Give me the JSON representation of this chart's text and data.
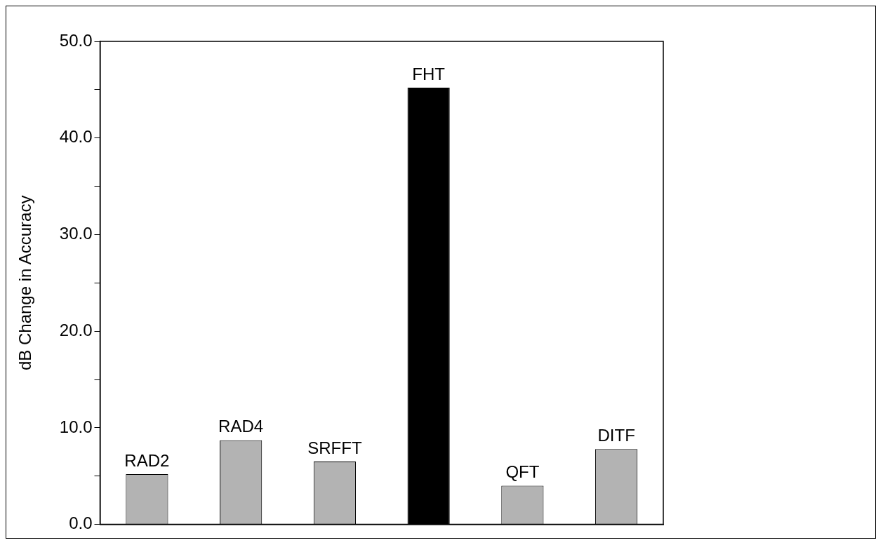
{
  "chart_data": {
    "type": "bar",
    "ylabel": "dB Change in Accuracy",
    "categories": [
      "RAD2",
      "RAD4",
      "SRFFT",
      "FHT",
      "QFT",
      "DITF"
    ],
    "values": [
      5.2,
      8.7,
      6.5,
      45.2,
      4.0,
      7.8
    ],
    "colors": [
      "#b3b3b3",
      "#b3b3b3",
      "#b3b3b3",
      "#000000",
      "#b3b3b3",
      "#b3b3b3"
    ],
    "ylim": [
      0,
      50
    ],
    "yticks": [
      {
        "value": 0,
        "label": "0.0"
      },
      {
        "value": 5,
        "label": null
      },
      {
        "value": 10,
        "label": "10.0"
      },
      {
        "value": 15,
        "label": null
      },
      {
        "value": 20,
        "label": "20.0"
      },
      {
        "value": 25,
        "label": null
      },
      {
        "value": 30,
        "label": "30.0"
      },
      {
        "value": 35,
        "label": null
      },
      {
        "value": 40,
        "label": "40.0"
      },
      {
        "value": 45,
        "label": null
      },
      {
        "value": 50,
        "label": "50.0"
      }
    ],
    "tick_labels": "y",
    "grid": false,
    "legend": false
  }
}
